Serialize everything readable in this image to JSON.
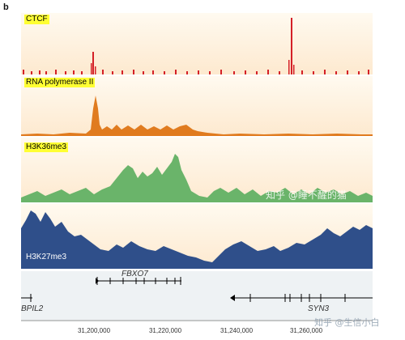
{
  "figure": {
    "panel_label": "b"
  },
  "tracks": [
    {
      "label": "CTCF",
      "color": "#d42027"
    },
    {
      "label": "RNA polymerase II",
      "color": "#e07b1f"
    },
    {
      "label": "H3K36me3",
      "color": "#6ab46a"
    },
    {
      "label": "H3K27me3",
      "color": "#2f4f8a"
    }
  ],
  "genes": [
    {
      "name": "FBXO7"
    },
    {
      "name": "BPIL2"
    },
    {
      "name": "SYN3"
    }
  ],
  "coordinates": [
    "31,200,000",
    "31,220,000",
    "31,240,000",
    "31,260,000"
  ],
  "watermarks": [
    "知乎 @睡不醒的猫",
    "知乎 @生信小白"
  ]
}
